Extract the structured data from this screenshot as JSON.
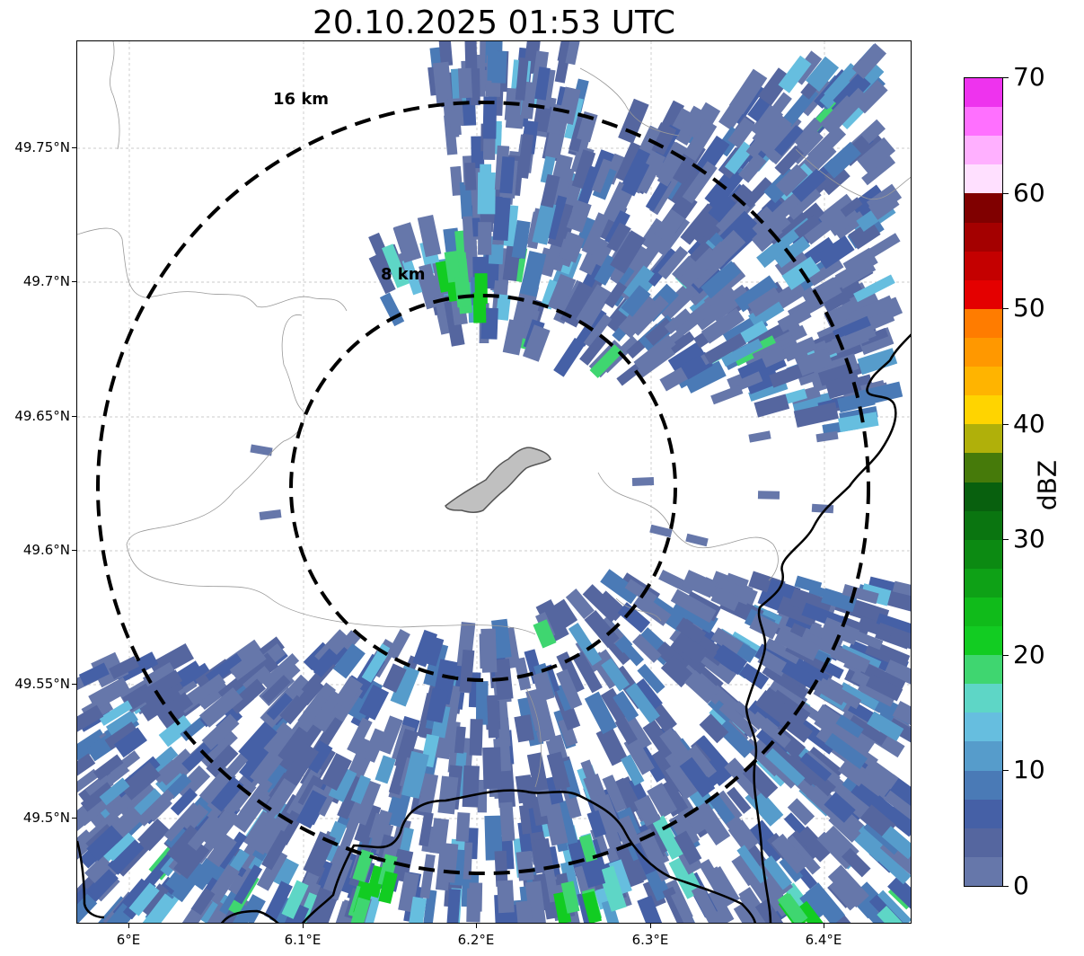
{
  "title": "20.10.2025 01:53 UTC",
  "map": {
    "y_ticks": [
      "49.75°N",
      "49.7°N",
      "49.65°N",
      "49.6°N",
      "49.55°N",
      "49.5°N"
    ],
    "x_ticks": [
      "6°E",
      "6.1°E",
      "6.2°E",
      "6.3°E",
      "6.4°E"
    ],
    "ring_labels": [
      "16 km",
      "8 km"
    ],
    "colors": {
      "grid": "#bbbbbb",
      "ring": "#000000",
      "border": "#000000",
      "admin_border": "#999999",
      "city_fill": "#c0c0c0"
    }
  },
  "colorbar": {
    "label": "dBZ",
    "min": 0,
    "max": 70,
    "tick_labels": [
      "0",
      "10",
      "20",
      "30",
      "40",
      "50",
      "60",
      "70"
    ],
    "colors": [
      "#6677aa",
      "#55669f",
      "#4560a6",
      "#4a7ab6",
      "#569ccb",
      "#66bedf",
      "#5ed6c6",
      "#3fd670",
      "#12cc22",
      "#10bb1a",
      "#0ea116",
      "#0c8a12",
      "#0a7510",
      "#08600e",
      "#467a0a",
      "#b0b00a",
      "#ffd400",
      "#ffb400",
      "#ff9800",
      "#ff7c00",
      "#e40000",
      "#c40000",
      "#a40000",
      "#800000",
      "#ffe0ff",
      "#ffb0ff",
      "#ff70ff",
      "#ee33ee"
    ]
  }
}
